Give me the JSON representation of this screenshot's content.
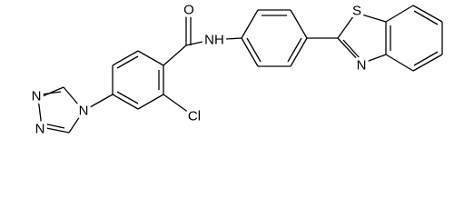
{
  "labels": [
    "O",
    "NH",
    "S",
    "N",
    "N",
    "N",
    "N",
    "Cl"
  ]
}
